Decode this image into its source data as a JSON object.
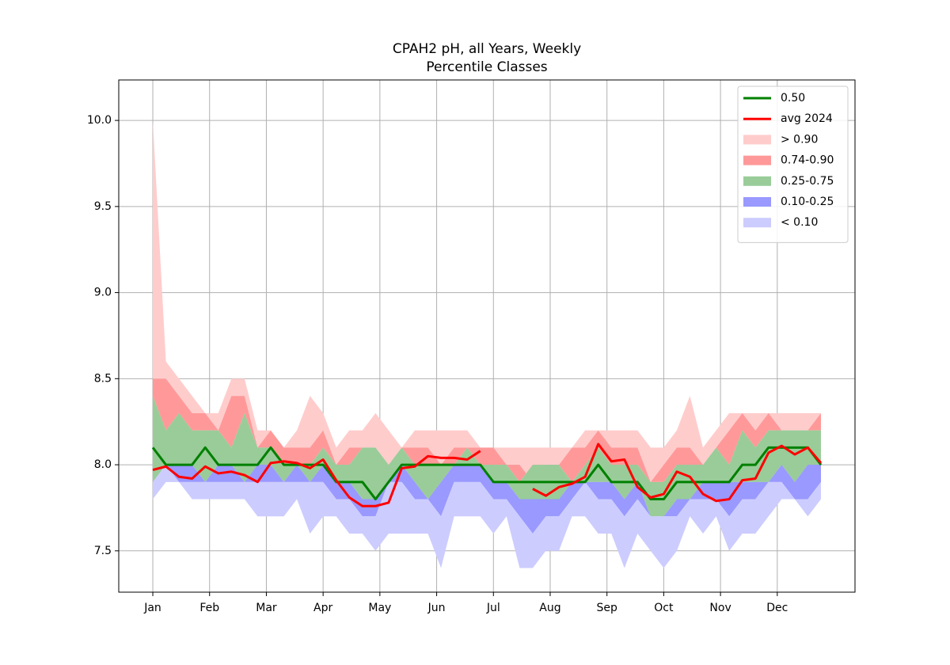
{
  "chart_data": {
    "type": "percentile-band",
    "title": "CPAH2 pH, all Years, Weekly",
    "subtitle": "Percentile Classes",
    "x": [
      0,
      1,
      2,
      3,
      4,
      5,
      6,
      7,
      8,
      9,
      10,
      11,
      12,
      13,
      14,
      15,
      16,
      17,
      18,
      19,
      20,
      21,
      22,
      23,
      24,
      25,
      26,
      27,
      28,
      29,
      30,
      31,
      32,
      33,
      34,
      35,
      36,
      37,
      38,
      39,
      40,
      41,
      42,
      43,
      44,
      45,
      46,
      47,
      48,
      49,
      50,
      51
    ],
    "xlim": [
      -2.6,
      53.6
    ],
    "xticks": [
      {
        "value": 0,
        "label": "Jan"
      },
      {
        "value": 4.333,
        "label": "Feb"
      },
      {
        "value": 8.667,
        "label": "Mar"
      },
      {
        "value": 13,
        "label": "Apr"
      },
      {
        "value": 17.333,
        "label": "May"
      },
      {
        "value": 21.667,
        "label": "Jun"
      },
      {
        "value": 26,
        "label": "Jul"
      },
      {
        "value": 30.333,
        "label": "Aug"
      },
      {
        "value": 34.667,
        "label": "Sep"
      },
      {
        "value": 39,
        "label": "Oct"
      },
      {
        "value": 43.333,
        "label": "Nov"
      },
      {
        "value": 47.667,
        "label": "Dec"
      }
    ],
    "ylim": [
      7.26,
      10.235
    ],
    "yticks": [
      {
        "value": 7.5,
        "label": "7.5"
      },
      {
        "value": 8.0,
        "label": "8.0"
      },
      {
        "value": 8.5,
        "label": "8.5"
      },
      {
        "value": 9.0,
        "label": "9.0"
      },
      {
        "value": 9.5,
        "label": "9.5"
      },
      {
        "value": 10.0,
        "label": "10.0"
      }
    ],
    "grid": true,
    "legend": "upper right",
    "series": [
      {
        "name": "0.50",
        "color": "#008000",
        "values": [
          8.1,
          8.0,
          8.0,
          8.0,
          8.1,
          8.0,
          8.0,
          8.0,
          8.0,
          8.1,
          8.0,
          8.0,
          8.0,
          8.0,
          7.9,
          7.9,
          7.9,
          7.8,
          7.9,
          8.0,
          8.0,
          8.0,
          8.0,
          8.0,
          8.0,
          8.0,
          7.9,
          7.9,
          7.9,
          7.9,
          7.9,
          7.9,
          7.9,
          7.9,
          8.0,
          7.9,
          7.9,
          7.9,
          7.8,
          7.8,
          7.9,
          7.9,
          7.9,
          7.9,
          7.9,
          8.0,
          8.0,
          8.1,
          8.1,
          8.1,
          8.1,
          8.0
        ]
      },
      {
        "name": "avg 2024",
        "color": "#ff0000",
        "values": [
          7.97,
          7.99,
          7.93,
          7.92,
          7.99,
          7.95,
          7.96,
          7.94,
          7.9,
          8.01,
          8.02,
          8.01,
          7.98,
          8.03,
          7.91,
          7.81,
          7.76,
          7.76,
          7.78,
          7.98,
          7.99,
          8.05,
          8.04,
          8.04,
          8.03,
          8.08,
          null,
          null,
          null,
          7.86,
          7.82,
          7.87,
          7.89,
          7.93,
          8.12,
          8.02,
          8.03,
          7.87,
          7.81,
          7.83,
          7.96,
          7.93,
          7.83,
          7.79,
          7.8,
          7.91,
          7.92,
          8.07,
          8.11,
          8.06,
          8.1,
          8.01
        ]
      }
    ],
    "bands": [
      {
        "name": "> 0.90",
        "color": "#ffcccc",
        "upper": [
          10.0,
          8.6,
          8.5,
          8.4,
          8.3,
          8.3,
          8.5,
          8.5,
          8.2,
          8.2,
          8.1,
          8.2,
          8.4,
          8.3,
          8.1,
          8.2,
          8.2,
          8.3,
          8.2,
          8.1,
          8.2,
          8.2,
          8.2,
          8.2,
          8.2,
          8.1,
          8.1,
          8.1,
          8.1,
          8.1,
          8.1,
          8.1,
          8.1,
          8.2,
          8.2,
          8.2,
          8.2,
          8.2,
          8.1,
          8.1,
          8.2,
          8.4,
          8.1,
          8.2,
          8.3,
          8.3,
          8.3,
          8.3,
          8.3,
          8.3,
          8.3,
          8.3
        ]
      },
      {
        "name": "0.74-0.90",
        "color": "#ff9999",
        "upper": [
          8.5,
          8.5,
          8.4,
          8.3,
          8.3,
          8.2,
          8.4,
          8.4,
          8.1,
          8.2,
          8.1,
          8.1,
          8.1,
          8.2,
          8.0,
          8.1,
          8.1,
          8.1,
          8.0,
          8.1,
          8.1,
          8.1,
          8.0,
          8.1,
          8.1,
          8.1,
          8.1,
          8.0,
          8.0,
          7.9,
          8.0,
          8.0,
          8.1,
          8.1,
          8.2,
          8.1,
          8.1,
          8.1,
          7.9,
          8.0,
          8.1,
          8.1,
          8.0,
          8.1,
          8.2,
          8.3,
          8.2,
          8.3,
          8.2,
          8.2,
          8.2,
          8.3
        ]
      },
      {
        "name": "0.25-0.75",
        "color": "#99cc99",
        "upper": [
          8.4,
          8.2,
          8.3,
          8.2,
          8.2,
          8.2,
          8.1,
          8.3,
          8.1,
          8.1,
          8.0,
          8.0,
          8.0,
          8.1,
          8.0,
          8.0,
          8.1,
          8.1,
          8.0,
          8.1,
          8.0,
          8.0,
          8.0,
          8.0,
          8.1,
          8.0,
          8.0,
          8.0,
          7.9,
          8.0,
          8.0,
          8.0,
          7.9,
          8.0,
          8.1,
          8.0,
          8.0,
          8.0,
          7.9,
          7.9,
          8.0,
          8.0,
          8.0,
          8.1,
          8.0,
          8.2,
          8.1,
          8.2,
          8.2,
          8.2,
          8.2,
          8.2
        ]
      },
      {
        "name": "0.10-0.25",
        "color": "#9999ff",
        "upper": [
          7.9,
          8.0,
          8.0,
          8.0,
          7.9,
          8.0,
          8.0,
          7.9,
          8.0,
          8.0,
          7.9,
          8.0,
          7.9,
          8.0,
          7.9,
          7.9,
          7.8,
          7.8,
          7.9,
          8.0,
          7.9,
          7.8,
          7.9,
          8.0,
          8.0,
          8.0,
          7.9,
          7.9,
          7.8,
          7.8,
          7.8,
          7.8,
          7.9,
          7.9,
          7.9,
          7.9,
          7.8,
          7.9,
          7.7,
          7.7,
          7.8,
          7.8,
          7.9,
          7.9,
          7.9,
          7.9,
          7.9,
          7.9,
          8.0,
          7.9,
          8.0,
          8.0
        ]
      },
      {
        "name": "< 0.10",
        "color": "#ccccff",
        "upper": [
          7.9,
          8.0,
          7.9,
          7.9,
          7.9,
          7.9,
          7.9,
          7.9,
          7.9,
          7.9,
          7.9,
          7.9,
          7.9,
          7.9,
          7.8,
          7.8,
          7.7,
          7.7,
          7.9,
          7.9,
          7.8,
          7.8,
          7.7,
          7.9,
          7.9,
          7.9,
          7.8,
          7.8,
          7.7,
          7.6,
          7.7,
          7.7,
          7.8,
          7.9,
          7.8,
          7.8,
          7.7,
          7.8,
          7.7,
          7.7,
          7.7,
          7.8,
          7.8,
          7.8,
          7.7,
          7.8,
          7.8,
          7.9,
          7.9,
          7.8,
          7.8,
          7.9
        ],
        "lower": [
          7.8,
          7.9,
          7.9,
          7.8,
          7.8,
          7.8,
          7.8,
          7.8,
          7.7,
          7.7,
          7.7,
          7.8,
          7.6,
          7.7,
          7.7,
          7.6,
          7.6,
          7.5,
          7.6,
          7.6,
          7.6,
          7.6,
          7.4,
          7.7,
          7.7,
          7.7,
          7.6,
          7.7,
          7.4,
          7.4,
          7.5,
          7.5,
          7.7,
          7.7,
          7.6,
          7.6,
          7.4,
          7.6,
          7.5,
          7.4,
          7.5,
          7.7,
          7.6,
          7.7,
          7.5,
          7.6,
          7.6,
          7.7,
          7.8,
          7.8,
          7.7,
          7.8
        ]
      }
    ]
  }
}
